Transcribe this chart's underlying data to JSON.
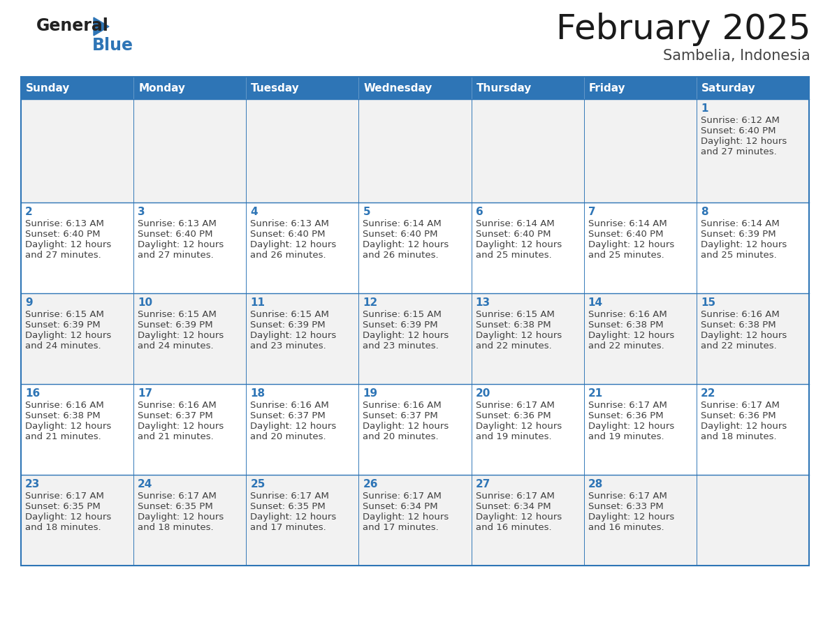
{
  "title": "February 2025",
  "subtitle": "Sambelia, Indonesia",
  "header_bg_color": "#2E75B6",
  "header_text_color": "#FFFFFF",
  "cell_bg_row0": "#F2F2F2",
  "cell_bg_row1": "#FFFFFF",
  "cell_bg_row2": "#F2F2F2",
  "cell_bg_row3": "#FFFFFF",
  "cell_bg_row4": "#F2F2F2",
  "border_color": "#2E75B6",
  "text_color": "#404040",
  "day_number_color": "#2E75B6",
  "days_of_week": [
    "Sunday",
    "Monday",
    "Tuesday",
    "Wednesday",
    "Thursday",
    "Friday",
    "Saturday"
  ],
  "calendar_data": [
    [
      null,
      null,
      null,
      null,
      null,
      null,
      {
        "day": 1,
        "sunrise": "6:12 AM",
        "sunset": "6:40 PM",
        "daylight": "12 hours",
        "daylight2": "and 27 minutes."
      }
    ],
    [
      {
        "day": 2,
        "sunrise": "6:13 AM",
        "sunset": "6:40 PM",
        "daylight": "12 hours",
        "daylight2": "and 27 minutes."
      },
      {
        "day": 3,
        "sunrise": "6:13 AM",
        "sunset": "6:40 PM",
        "daylight": "12 hours",
        "daylight2": "and 27 minutes."
      },
      {
        "day": 4,
        "sunrise": "6:13 AM",
        "sunset": "6:40 PM",
        "daylight": "12 hours",
        "daylight2": "and 26 minutes."
      },
      {
        "day": 5,
        "sunrise": "6:14 AM",
        "sunset": "6:40 PM",
        "daylight": "12 hours",
        "daylight2": "and 26 minutes."
      },
      {
        "day": 6,
        "sunrise": "6:14 AM",
        "sunset": "6:40 PM",
        "daylight": "12 hours",
        "daylight2": "and 25 minutes."
      },
      {
        "day": 7,
        "sunrise": "6:14 AM",
        "sunset": "6:40 PM",
        "daylight": "12 hours",
        "daylight2": "and 25 minutes."
      },
      {
        "day": 8,
        "sunrise": "6:14 AM",
        "sunset": "6:39 PM",
        "daylight": "12 hours",
        "daylight2": "and 25 minutes."
      }
    ],
    [
      {
        "day": 9,
        "sunrise": "6:15 AM",
        "sunset": "6:39 PM",
        "daylight": "12 hours",
        "daylight2": "and 24 minutes."
      },
      {
        "day": 10,
        "sunrise": "6:15 AM",
        "sunset": "6:39 PM",
        "daylight": "12 hours",
        "daylight2": "and 24 minutes."
      },
      {
        "day": 11,
        "sunrise": "6:15 AM",
        "sunset": "6:39 PM",
        "daylight": "12 hours",
        "daylight2": "and 23 minutes."
      },
      {
        "day": 12,
        "sunrise": "6:15 AM",
        "sunset": "6:39 PM",
        "daylight": "12 hours",
        "daylight2": "and 23 minutes."
      },
      {
        "day": 13,
        "sunrise": "6:15 AM",
        "sunset": "6:38 PM",
        "daylight": "12 hours",
        "daylight2": "and 22 minutes."
      },
      {
        "day": 14,
        "sunrise": "6:16 AM",
        "sunset": "6:38 PM",
        "daylight": "12 hours",
        "daylight2": "and 22 minutes."
      },
      {
        "day": 15,
        "sunrise": "6:16 AM",
        "sunset": "6:38 PM",
        "daylight": "12 hours",
        "daylight2": "and 22 minutes."
      }
    ],
    [
      {
        "day": 16,
        "sunrise": "6:16 AM",
        "sunset": "6:38 PM",
        "daylight": "12 hours",
        "daylight2": "and 21 minutes."
      },
      {
        "day": 17,
        "sunrise": "6:16 AM",
        "sunset": "6:37 PM",
        "daylight": "12 hours",
        "daylight2": "and 21 minutes."
      },
      {
        "day": 18,
        "sunrise": "6:16 AM",
        "sunset": "6:37 PM",
        "daylight": "12 hours",
        "daylight2": "and 20 minutes."
      },
      {
        "day": 19,
        "sunrise": "6:16 AM",
        "sunset": "6:37 PM",
        "daylight": "12 hours",
        "daylight2": "and 20 minutes."
      },
      {
        "day": 20,
        "sunrise": "6:17 AM",
        "sunset": "6:36 PM",
        "daylight": "12 hours",
        "daylight2": "and 19 minutes."
      },
      {
        "day": 21,
        "sunrise": "6:17 AM",
        "sunset": "6:36 PM",
        "daylight": "12 hours",
        "daylight2": "and 19 minutes."
      },
      {
        "day": 22,
        "sunrise": "6:17 AM",
        "sunset": "6:36 PM",
        "daylight": "12 hours",
        "daylight2": "and 18 minutes."
      }
    ],
    [
      {
        "day": 23,
        "sunrise": "6:17 AM",
        "sunset": "6:35 PM",
        "daylight": "12 hours",
        "daylight2": "and 18 minutes."
      },
      {
        "day": 24,
        "sunrise": "6:17 AM",
        "sunset": "6:35 PM",
        "daylight": "12 hours",
        "daylight2": "and 18 minutes."
      },
      {
        "day": 25,
        "sunrise": "6:17 AM",
        "sunset": "6:35 PM",
        "daylight": "12 hours",
        "daylight2": "and 17 minutes."
      },
      {
        "day": 26,
        "sunrise": "6:17 AM",
        "sunset": "6:34 PM",
        "daylight": "12 hours",
        "daylight2": "and 17 minutes."
      },
      {
        "day": 27,
        "sunrise": "6:17 AM",
        "sunset": "6:34 PM",
        "daylight": "12 hours",
        "daylight2": "and 16 minutes."
      },
      {
        "day": 28,
        "sunrise": "6:17 AM",
        "sunset": "6:33 PM",
        "daylight": "12 hours",
        "daylight2": "and 16 minutes."
      },
      null
    ]
  ]
}
